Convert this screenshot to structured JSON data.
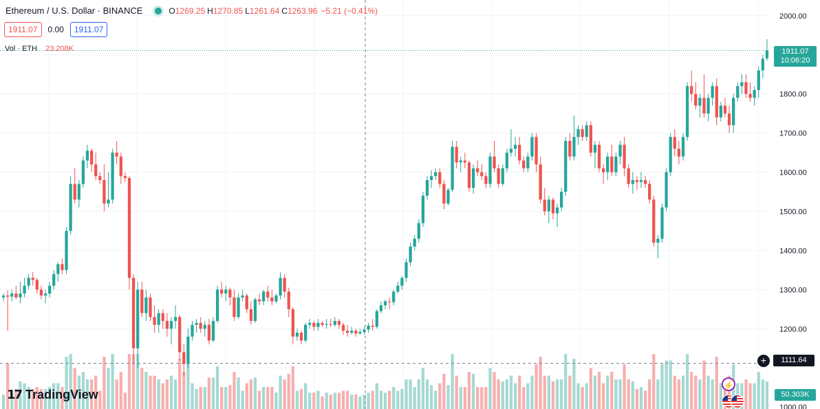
{
  "header": {
    "symbol_title": "Ethereum / U.S. Dollar · BINANCE",
    "ohlc": {
      "o_label": "O",
      "o": "1269.25",
      "h_label": "H",
      "h": "1270.85",
      "l_label": "L",
      "l": "1261.64",
      "c_label": "C",
      "c": "1263.96",
      "change": "−5.21 (−0.41%)"
    }
  },
  "price_boxes": {
    "bid": "1911.07",
    "spread": "0.00",
    "ask": "1911.07"
  },
  "volume_legend": {
    "label": "Vol · ETH",
    "value": "23.208K"
  },
  "axis_labels": {
    "last_price": "1911.07",
    "countdown": "10:06:20",
    "crosshair_price": "1111.64",
    "volume_last": "50.303K"
  },
  "branding": {
    "logo_mark": "17",
    "logo_text": "TradingView"
  },
  "colors": {
    "up": "#26a69a",
    "down": "#ef5350",
    "volume_up": "#a5d9d3",
    "volume_down": "#f7b0ae",
    "grid": "#f0f3fa"
  },
  "icons": [
    "plus-circle-icon",
    "lightning-icon",
    "us-flag-icon",
    "tradingview-logo-icon"
  ],
  "chart_data": {
    "type": "candlestick",
    "price_axis": {
      "ticks": [
        2000,
        1900,
        1800,
        1700,
        1600,
        1500,
        1400,
        1300,
        1200,
        1100,
        1000
      ],
      "tick_labels": [
        "2000.00",
        "1800.00",
        "1700.00",
        "1600.00",
        "1500.00",
        "1400.00",
        "1300.00",
        "1200.00",
        "1000.00"
      ],
      "range": [
        995,
        2040
      ]
    },
    "last_price": 1911.07,
    "crosshair_price": 1111.64,
    "candles": [
      [
        1280,
        1290,
        1270,
        1285
      ],
      [
        1285,
        1298,
        1195,
        1282
      ],
      [
        1282,
        1300,
        1270,
        1290
      ],
      [
        1290,
        1310,
        1275,
        1280
      ],
      [
        1280,
        1320,
        1265,
        1290
      ],
      [
        1290,
        1330,
        1280,
        1310
      ],
      [
        1310,
        1340,
        1300,
        1330
      ],
      [
        1330,
        1345,
        1310,
        1325
      ],
      [
        1325,
        1330,
        1290,
        1300
      ],
      [
        1300,
        1310,
        1275,
        1285
      ],
      [
        1285,
        1300,
        1265,
        1290
      ],
      [
        1290,
        1320,
        1280,
        1310
      ],
      [
        1310,
        1350,
        1300,
        1340
      ],
      [
        1340,
        1370,
        1320,
        1365
      ],
      [
        1365,
        1380,
        1340,
        1350
      ],
      [
        1350,
        1460,
        1340,
        1450
      ],
      [
        1450,
        1590,
        1440,
        1570
      ],
      [
        1570,
        1610,
        1520,
        1530
      ],
      [
        1530,
        1580,
        1510,
        1570
      ],
      [
        1570,
        1640,
        1560,
        1630
      ],
      [
        1630,
        1670,
        1610,
        1655
      ],
      [
        1655,
        1660,
        1600,
        1620
      ],
      [
        1620,
        1650,
        1580,
        1590
      ],
      [
        1590,
        1600,
        1570,
        1580
      ],
      [
        1580,
        1620,
        1500,
        1520
      ],
      [
        1520,
        1600,
        1510,
        1530
      ],
      [
        1530,
        1660,
        1520,
        1650
      ],
      [
        1650,
        1680,
        1620,
        1640
      ],
      [
        1640,
        1650,
        1570,
        1590
      ],
      [
        1590,
        1600,
        1575,
        1585
      ],
      [
        1585,
        1590,
        1300,
        1330
      ],
      [
        1330,
        1340,
        1110,
        1150
      ],
      [
        1150,
        1320,
        1100,
        1300
      ],
      [
        1300,
        1320,
        1230,
        1240
      ],
      [
        1240,
        1300,
        1220,
        1280
      ],
      [
        1280,
        1290,
        1220,
        1230
      ],
      [
        1230,
        1260,
        1190,
        1210
      ],
      [
        1210,
        1250,
        1190,
        1240
      ],
      [
        1240,
        1250,
        1200,
        1220
      ],
      [
        1220,
        1240,
        1180,
        1200
      ],
      [
        1200,
        1230,
        1160,
        1220
      ],
      [
        1220,
        1260,
        1200,
        1230
      ],
      [
        1230,
        1235,
        1120,
        1140
      ],
      [
        1140,
        1160,
        1080,
        1110
      ],
      [
        1110,
        1200,
        1100,
        1180
      ],
      [
        1180,
        1220,
        1170,
        1210
      ],
      [
        1210,
        1225,
        1190,
        1215
      ],
      [
        1215,
        1230,
        1190,
        1200
      ],
      [
        1200,
        1220,
        1180,
        1210
      ],
      [
        1210,
        1225,
        1160,
        1170
      ],
      [
        1170,
        1230,
        1165,
        1220
      ],
      [
        1220,
        1310,
        1215,
        1300
      ],
      [
        1300,
        1320,
        1280,
        1290
      ],
      [
        1290,
        1310,
        1270,
        1300
      ],
      [
        1300,
        1305,
        1260,
        1280
      ],
      [
        1280,
        1300,
        1220,
        1230
      ],
      [
        1230,
        1290,
        1225,
        1280
      ],
      [
        1280,
        1300,
        1270,
        1285
      ],
      [
        1285,
        1290,
        1240,
        1250
      ],
      [
        1250,
        1270,
        1210,
        1220
      ],
      [
        1220,
        1280,
        1215,
        1275
      ],
      [
        1275,
        1290,
        1260,
        1270
      ],
      [
        1270,
        1300,
        1260,
        1295
      ],
      [
        1295,
        1310,
        1270,
        1280
      ],
      [
        1280,
        1300,
        1260,
        1270
      ],
      [
        1270,
        1290,
        1265,
        1285
      ],
      [
        1285,
        1345,
        1275,
        1330
      ],
      [
        1330,
        1340,
        1280,
        1295
      ],
      [
        1295,
        1305,
        1230,
        1250
      ],
      [
        1250,
        1255,
        1160,
        1180
      ],
      [
        1180,
        1200,
        1170,
        1190
      ],
      [
        1190,
        1195,
        1160,
        1170
      ],
      [
        1170,
        1215,
        1165,
        1210
      ],
      [
        1210,
        1225,
        1200,
        1215
      ],
      [
        1215,
        1220,
        1195,
        1205
      ],
      [
        1205,
        1225,
        1195,
        1215
      ],
      [
        1215,
        1220,
        1205,
        1210
      ],
      [
        1210,
        1225,
        1200,
        1212
      ],
      [
        1212,
        1225,
        1205,
        1210
      ],
      [
        1210,
        1230,
        1205,
        1220
      ],
      [
        1220,
        1225,
        1200,
        1210
      ],
      [
        1210,
        1215,
        1185,
        1195
      ],
      [
        1195,
        1210,
        1180,
        1190
      ],
      [
        1190,
        1205,
        1185,
        1195
      ],
      [
        1195,
        1200,
        1180,
        1188
      ],
      [
        1188,
        1200,
        1185,
        1192
      ],
      [
        1192,
        1205,
        1185,
        1198
      ],
      [
        1198,
        1215,
        1190,
        1208
      ],
      [
        1208,
        1225,
        1195,
        1205
      ],
      [
        1205,
        1250,
        1200,
        1245
      ],
      [
        1245,
        1270,
        1240,
        1260
      ],
      [
        1260,
        1275,
        1250,
        1270
      ],
      [
        1270,
        1280,
        1250,
        1268
      ],
      [
        1268,
        1300,
        1260,
        1295
      ],
      [
        1295,
        1320,
        1290,
        1310
      ],
      [
        1310,
        1335,
        1300,
        1330
      ],
      [
        1330,
        1380,
        1320,
        1370
      ],
      [
        1370,
        1420,
        1360,
        1410
      ],
      [
        1410,
        1440,
        1400,
        1430
      ],
      [
        1430,
        1480,
        1420,
        1470
      ],
      [
        1470,
        1550,
        1460,
        1540
      ],
      [
        1540,
        1590,
        1530,
        1580
      ],
      [
        1580,
        1605,
        1560,
        1590
      ],
      [
        1590,
        1610,
        1580,
        1600
      ],
      [
        1600,
        1610,
        1560,
        1570
      ],
      [
        1570,
        1580,
        1505,
        1520
      ],
      [
        1520,
        1560,
        1515,
        1555
      ],
      [
        1555,
        1680,
        1550,
        1665
      ],
      [
        1665,
        1680,
        1610,
        1625
      ],
      [
        1625,
        1640,
        1600,
        1630
      ],
      [
        1630,
        1650,
        1610,
        1625
      ],
      [
        1625,
        1630,
        1550,
        1560
      ],
      [
        1560,
        1620,
        1545,
        1610
      ],
      [
        1610,
        1630,
        1590,
        1600
      ],
      [
        1600,
        1620,
        1580,
        1590
      ],
      [
        1590,
        1600,
        1560,
        1570
      ],
      [
        1570,
        1650,
        1560,
        1640
      ],
      [
        1640,
        1680,
        1600,
        1610
      ],
      [
        1610,
        1620,
        1560,
        1570
      ],
      [
        1570,
        1620,
        1565,
        1610
      ],
      [
        1610,
        1660,
        1600,
        1650
      ],
      [
        1650,
        1710,
        1640,
        1660
      ],
      [
        1660,
        1690,
        1640,
        1670
      ],
      [
        1670,
        1690,
        1620,
        1630
      ],
      [
        1630,
        1640,
        1600,
        1610
      ],
      [
        1610,
        1650,
        1600,
        1640
      ],
      [
        1640,
        1700,
        1630,
        1690
      ],
      [
        1690,
        1700,
        1600,
        1620
      ],
      [
        1620,
        1640,
        1520,
        1530
      ],
      [
        1530,
        1560,
        1490,
        1500
      ],
      [
        1500,
        1540,
        1470,
        1530
      ],
      [
        1530,
        1535,
        1480,
        1495
      ],
      [
        1495,
        1520,
        1460,
        1510
      ],
      [
        1510,
        1560,
        1500,
        1550
      ],
      [
        1550,
        1690,
        1540,
        1680
      ],
      [
        1680,
        1700,
        1630,
        1640
      ],
      [
        1640,
        1745,
        1630,
        1690
      ],
      [
        1690,
        1720,
        1670,
        1710
      ],
      [
        1710,
        1720,
        1680,
        1690
      ],
      [
        1690,
        1730,
        1680,
        1720
      ],
      [
        1720,
        1730,
        1640,
        1650
      ],
      [
        1650,
        1680,
        1610,
        1670
      ],
      [
        1670,
        1680,
        1600,
        1610
      ],
      [
        1610,
        1620,
        1570,
        1600
      ],
      [
        1600,
        1650,
        1580,
        1640
      ],
      [
        1640,
        1670,
        1590,
        1600
      ],
      [
        1600,
        1650,
        1590,
        1640
      ],
      [
        1640,
        1680,
        1620,
        1670
      ],
      [
        1670,
        1690,
        1590,
        1610
      ],
      [
        1610,
        1620,
        1560,
        1570
      ],
      [
        1570,
        1600,
        1545,
        1580
      ],
      [
        1580,
        1590,
        1555,
        1575
      ],
      [
        1575,
        1600,
        1560,
        1580
      ],
      [
        1580,
        1590,
        1560,
        1570
      ],
      [
        1570,
        1580,
        1520,
        1530
      ],
      [
        1530,
        1540,
        1410,
        1420
      ],
      [
        1420,
        1440,
        1380,
        1430
      ],
      [
        1430,
        1520,
        1420,
        1510
      ],
      [
        1510,
        1610,
        1500,
        1600
      ],
      [
        1600,
        1700,
        1590,
        1690
      ],
      [
        1690,
        1710,
        1640,
        1660
      ],
      [
        1660,
        1680,
        1620,
        1640
      ],
      [
        1640,
        1700,
        1630,
        1690
      ],
      [
        1690,
        1830,
        1680,
        1820
      ],
      [
        1820,
        1860,
        1780,
        1800
      ],
      [
        1800,
        1830,
        1760,
        1770
      ],
      [
        1770,
        1800,
        1740,
        1790
      ],
      [
        1790,
        1850,
        1740,
        1750
      ],
      [
        1750,
        1800,
        1730,
        1790
      ],
      [
        1790,
        1830,
        1770,
        1820
      ],
      [
        1820,
        1840,
        1720,
        1740
      ],
      [
        1740,
        1780,
        1730,
        1770
      ],
      [
        1770,
        1790,
        1740,
        1750
      ],
      [
        1750,
        1770,
        1700,
        1720
      ],
      [
        1720,
        1800,
        1700,
        1790
      ],
      [
        1790,
        1830,
        1780,
        1820
      ],
      [
        1820,
        1850,
        1800,
        1830
      ],
      [
        1830,
        1850,
        1790,
        1800
      ],
      [
        1800,
        1830,
        1780,
        1790
      ],
      [
        1790,
        1820,
        1770,
        1810
      ],
      [
        1810,
        1870,
        1790,
        1860
      ],
      [
        1860,
        1900,
        1840,
        1890
      ],
      [
        1891,
        1940,
        1885,
        1911.07
      ]
    ],
    "volume_scale_max": 80
  }
}
